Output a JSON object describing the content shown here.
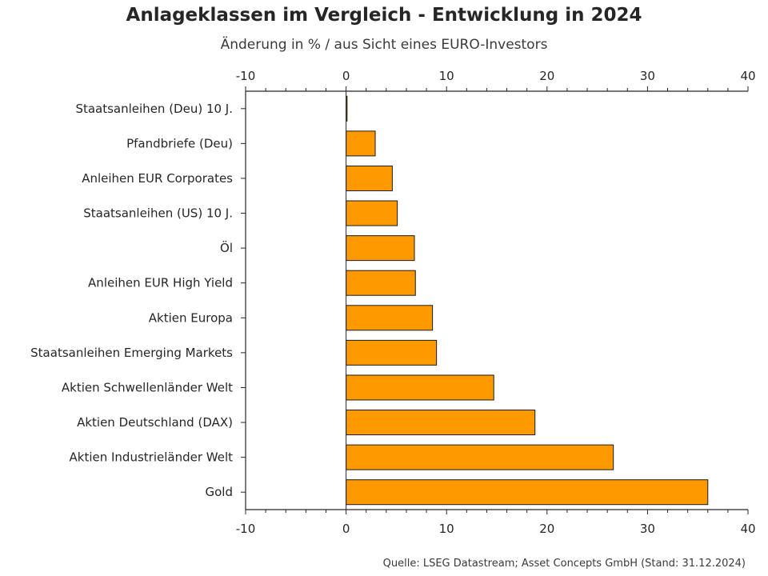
{
  "chart_data": {
    "type": "bar",
    "orientation": "horizontal",
    "title": "Anlageklassen im Vergleich - Entwicklung in 2024",
    "subtitle": "Änderung in % / aus Sicht eines EURO-Investors",
    "categories": [
      "Staatsanleihen (Deu) 10 J.",
      "Pfandbriefe (Deu)",
      "Anleihen EUR Corporates",
      "Staatsanleihen (US) 10 J.",
      "Öl",
      "Anleihen EUR High Yield",
      "Aktien Europa",
      "Staatsanleihen Emerging Markets",
      "Aktien Schwellenländer Welt",
      "Aktien Deutschland (DAX)",
      "Aktien Industrieländer Welt",
      "Gold"
    ],
    "values": [
      0.1,
      2.9,
      4.6,
      5.1,
      6.8,
      6.9,
      8.6,
      9.0,
      14.7,
      18.8,
      26.6,
      36.0
    ],
    "xlim": [
      -10,
      40
    ],
    "xticks": [
      -10,
      0,
      10,
      20,
      30,
      40
    ],
    "tick_labels": [
      "-10",
      "0",
      "10",
      "20",
      "30",
      "40"
    ],
    "bar_color": "#ff9900",
    "bar_edge_color": "#1a1a1a",
    "axes_position": "top and bottom",
    "grid": false,
    "legend": false,
    "source": "Quelle: LSEG Datastream; Asset Concepts GmbH (Stand: 31.12.2024)"
  }
}
